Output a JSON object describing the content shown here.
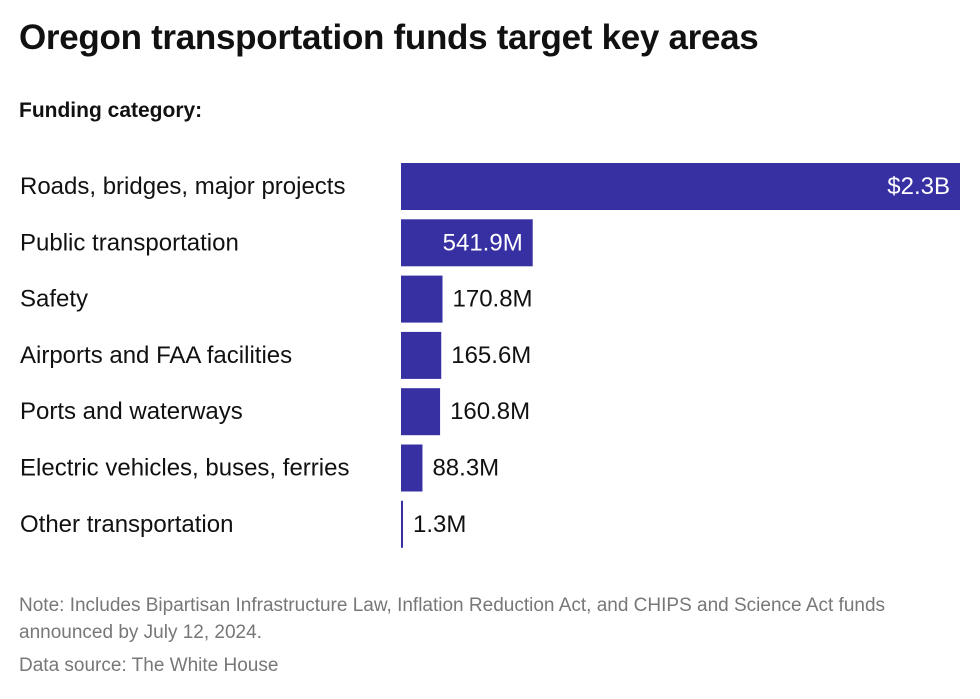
{
  "title": "Oregon transportation funds target key areas",
  "subtitle": "Funding category:",
  "note": "Note: Includes Bipartisan Infrastructure Law, Inflation Reduction Act, and CHIPS and Science Act funds announced by July 12, 2024.",
  "source": "Data source: The White House",
  "colors": {
    "bar": "#3730a3",
    "label_inside": "#ffffff",
    "label_outside": "#111111"
  },
  "chart_data": {
    "type": "bar",
    "orientation": "horizontal",
    "title": "Oregon transportation funds target key areas",
    "subtitle": "Funding category:",
    "categories": [
      "Roads, bridges, major projects",
      "Public transportation",
      "Safety",
      "Airports and FAA facilities",
      "Ports and waterways",
      "Electric vehicles, buses, ferries",
      "Other transportation"
    ],
    "values": [
      2300,
      541.9,
      170.8,
      165.6,
      160.8,
      88.3,
      1.3
    ],
    "unit": "millions of dollars",
    "value_labels": [
      "$2.3B",
      "541.9M",
      "170.8M",
      "165.6M",
      "160.8M",
      "88.3M",
      "1.3M"
    ],
    "xlim": [
      0,
      2300
    ],
    "grid": false,
    "legend": "none"
  }
}
